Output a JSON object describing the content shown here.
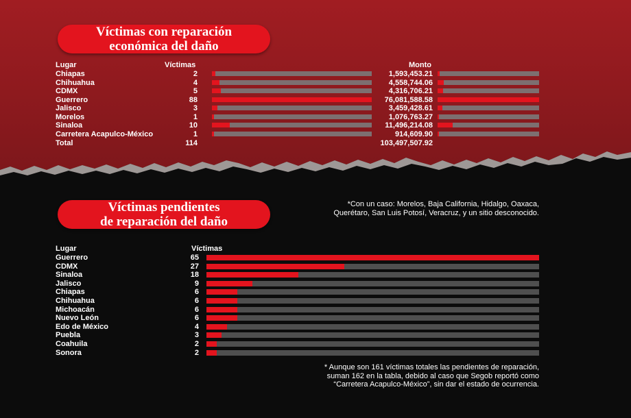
{
  "section1": {
    "title_line1": "Víctimas con reparación",
    "title_line2": "económica del daño",
    "col_place": "Lugar",
    "col_victims": "Víctimas",
    "col_amount": "Monto",
    "total_label": "Total",
    "total_victims": "114",
    "total_amount": "103,497,507.92"
  },
  "section2": {
    "title_line1": "Víctimas pendientes",
    "title_line2": "de reparación del daño",
    "col_place": "Lugar",
    "col_victims": "Víctimas",
    "note_top_line1": "*Con un caso: Morelos, Baja California, Hidalgo, Oaxaca,",
    "note_top_line2": "Querétaro, San Luis Potosí, Veracruz, y un sitio desconocido.",
    "note_bottom_line1": "* Aunque son 161 víctimas totales las pendientes de reparación,",
    "note_bottom_line2": "suman 162 en la tabla, debido al caso que Segob reportó como",
    "note_bottom_line3": "“Carretera Acapulco-México”, sin dar el estado de ocurrencia."
  },
  "colors": {
    "accent": "#e3141e",
    "top_background": "#8b1a1f",
    "bottom_background": "#0c0c0c"
  },
  "chart_data": [
    {
      "type": "bar",
      "categories": [
        "Chiapas",
        "Chihuahua",
        "CDMX",
        "Guerrero",
        "Jalisco",
        "Morelos",
        "Sinaloa",
        "Carretera Acapulco-México"
      ],
      "series": [
        {
          "name": "Víctimas",
          "values": [
            2,
            4,
            5,
            88,
            3,
            1,
            10,
            1
          ],
          "labels": [
            "2",
            "4",
            "5",
            "88",
            "3",
            "1",
            "10",
            "1"
          ]
        },
        {
          "name": "Monto",
          "values": [
            1593453.21,
            4558744.06,
            4316706.21,
            76081588.58,
            3459428.61,
            1076763.27,
            11496214.08,
            914609.9
          ],
          "labels": [
            "1,593,453.21",
            "4,558,744.06",
            "4,316,706.21",
            "76,081,588.58",
            "3,459,428.61",
            "1,076,763.27",
            "11,496,214.08",
            "914,609.90"
          ]
        }
      ]
    },
    {
      "type": "bar",
      "categories": [
        "Guerrero",
        "CDMX",
        "Sinaloa",
        "Jalisco",
        "Chiapas",
        "Chihuahua",
        "Michoacán",
        "Nuevo León",
        "Edo de México",
        "Puebla",
        "Coahuila",
        "Sonora"
      ],
      "series": [
        {
          "name": "Víctimas",
          "values": [
            65,
            27,
            18,
            9,
            6,
            6,
            6,
            6,
            4,
            3,
            2,
            2
          ],
          "labels": [
            "65",
            "27",
            "18",
            "9",
            "6",
            "6",
            "6",
            "6",
            "4",
            "3",
            "2",
            "2"
          ]
        }
      ]
    }
  ]
}
